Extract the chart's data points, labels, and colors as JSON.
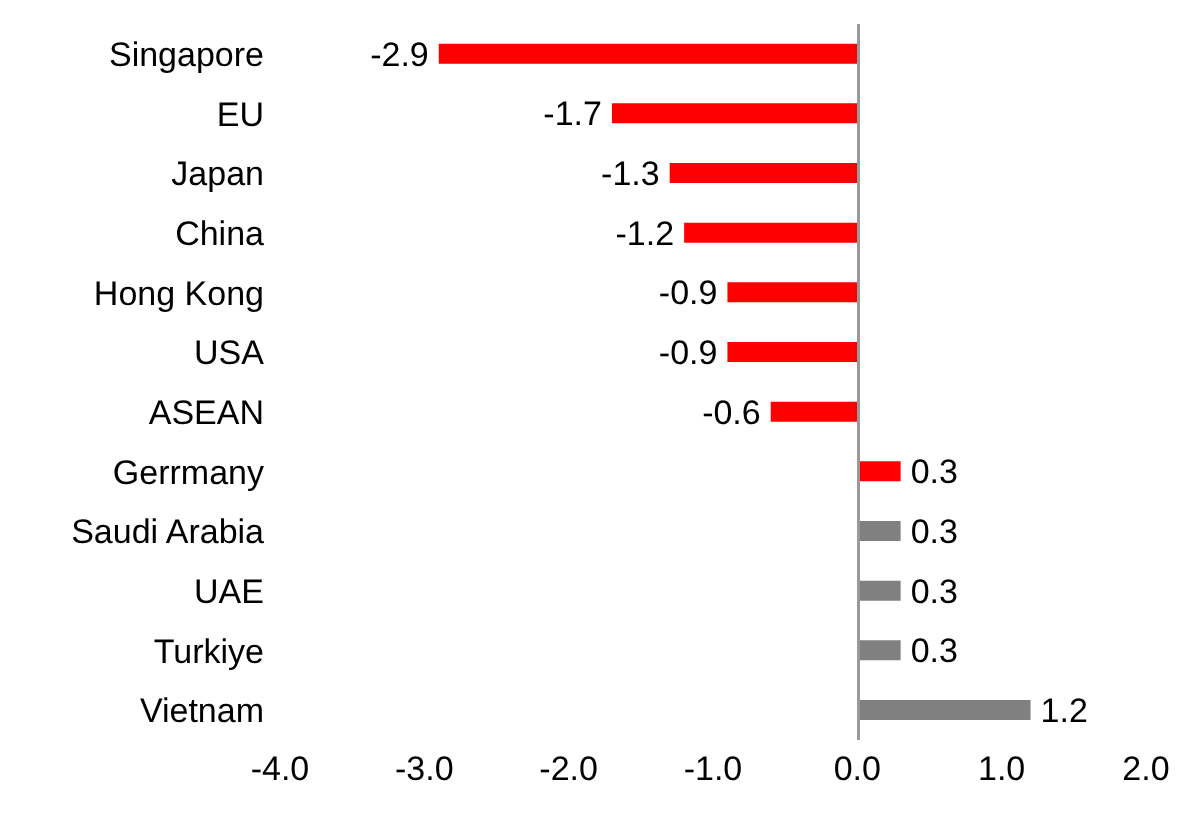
{
  "chart_data": {
    "type": "bar",
    "orientation": "horizontal",
    "categories": [
      "Singapore",
      "EU",
      "Japan",
      "China",
      "Hong Kong",
      "USA",
      "ASEAN",
      "Gerrmany",
      "Saudi Arabia",
      "UAE",
      "Turkiye",
      "Vietnam"
    ],
    "values": [
      -2.9,
      -1.7,
      -1.3,
      -1.2,
      -0.9,
      -0.9,
      -0.6,
      0.3,
      0.3,
      0.3,
      0.3,
      1.2
    ],
    "colors": [
      "#ff0000",
      "#ff0000",
      "#ff0000",
      "#ff0000",
      "#ff0000",
      "#ff0000",
      "#ff0000",
      "#ff0000",
      "#808080",
      "#808080",
      "#808080",
      "#808080"
    ],
    "xlim": [
      -4,
      2
    ],
    "xticks": [
      {
        "value": -4,
        "label": "-4.0"
      },
      {
        "value": -3,
        "label": "-3.0"
      },
      {
        "value": -2,
        "label": "-2.0"
      },
      {
        "value": -1,
        "label": "-1.0"
      },
      {
        "value": 0,
        "label": "0.0"
      },
      {
        "value": 1,
        "label": "1.0"
      },
      {
        "value": 2,
        "label": "2.0"
      }
    ],
    "data_labels": true,
    "grid": false,
    "legend": false
  }
}
